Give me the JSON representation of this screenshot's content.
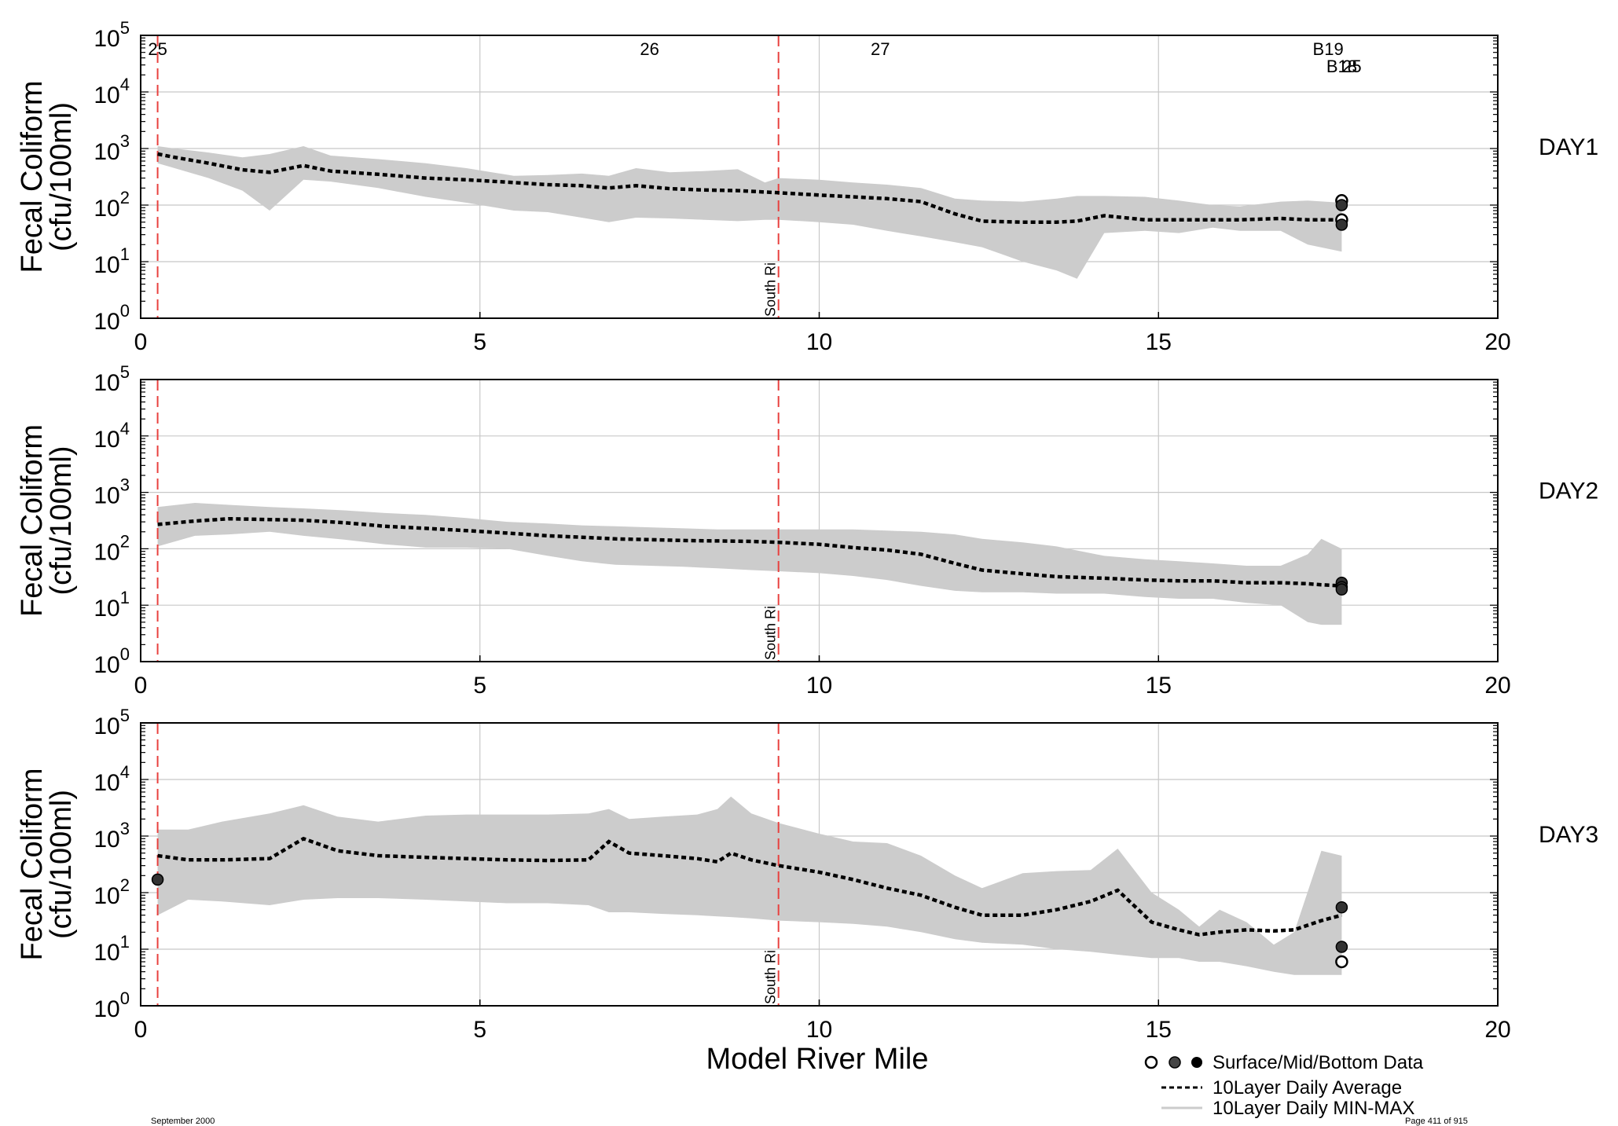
{
  "figure": {
    "xlabel": "Model River Mile",
    "xlim": [
      0,
      20
    ],
    "xticks": [
      "0",
      "5",
      "10",
      "15",
      "20"
    ],
    "yticks_base": "10",
    "yticks_exp": [
      "0",
      "1",
      "2",
      "3",
      "4",
      "5"
    ],
    "ylabel_line1": "Fecal Coliform",
    "ylabel_line2": "(cfu/100ml)",
    "south_river_label": "South Ri",
    "legend": {
      "data_label": "Surface/Mid/Bottom Data",
      "avg_label": "10Layer Daily Average",
      "minmax_label": "10Layer Daily MIN-MAX"
    },
    "footer_left": "September 2000",
    "footer_right": "Page 411 of 915",
    "colors": {
      "band": "#cccccc",
      "avg": "#000000",
      "marker_line": "#e8413f",
      "station_text": "#22b822",
      "grid": "#c8c8c8"
    }
  },
  "chart_data": [
    {
      "type": "area",
      "panel_label": "DAY1",
      "yscale": "log",
      "ylim": [
        1,
        100000
      ],
      "station_labels": [
        {
          "label": "25",
          "x": 0.25,
          "row": 0
        },
        {
          "label": "26",
          "x": 7.5,
          "row": 0
        },
        {
          "label": "27",
          "x": 10.9,
          "row": 0
        },
        {
          "label": "B19",
          "x": 17.5,
          "row": 0
        },
        {
          "label": "B18",
          "x": 17.7,
          "row": 1
        },
        {
          "label": "25",
          "x": 17.85,
          "row": 1
        }
      ],
      "vlines": [
        0.25,
        9.4
      ],
      "x": [
        0.25,
        0.5,
        1.0,
        1.5,
        1.9,
        2.4,
        2.8,
        3.5,
        4.2,
        4.8,
        5.5,
        6.0,
        6.5,
        6.9,
        7.3,
        7.8,
        8.3,
        8.8,
        9.2,
        9.4,
        10.0,
        10.5,
        11.0,
        11.5,
        12.0,
        12.4,
        13.0,
        13.5,
        13.8,
        14.2,
        14.8,
        15.3,
        15.8,
        16.2,
        16.8,
        17.2,
        17.7
      ],
      "avg": [
        800,
        700,
        550,
        420,
        380,
        500,
        400,
        350,
        300,
        280,
        250,
        230,
        220,
        200,
        220,
        195,
        185,
        180,
        170,
        165,
        150,
        140,
        130,
        115,
        70,
        52,
        50,
        50,
        52,
        65,
        55,
        55,
        55,
        55,
        58,
        55,
        55
      ],
      "max": [
        1100,
        1000,
        850,
        700,
        800,
        1100,
        750,
        650,
        550,
        450,
        330,
        340,
        360,
        330,
        450,
        380,
        400,
        430,
        250,
        300,
        280,
        250,
        230,
        200,
        130,
        120,
        115,
        130,
        145,
        145,
        140,
        120,
        100,
        95,
        115,
        120,
        110
      ],
      "min": [
        550,
        450,
        300,
        180,
        80,
        280,
        260,
        200,
        140,
        110,
        80,
        75,
        60,
        50,
        60,
        58,
        55,
        52,
        55,
        55,
        50,
        45,
        35,
        28,
        22,
        18,
        10,
        7,
        5,
        32,
        35,
        32,
        40,
        35,
        35,
        20,
        15
      ],
      "data_points": [
        {
          "x": 17.7,
          "y": 120,
          "style": "open"
        },
        {
          "x": 17.7,
          "y": 100,
          "style": "mid"
        },
        {
          "x": 17.7,
          "y": 55,
          "style": "open"
        },
        {
          "x": 17.7,
          "y": 45,
          "style": "mid"
        }
      ]
    },
    {
      "type": "area",
      "panel_label": "DAY2",
      "yscale": "log",
      "ylim": [
        1,
        100000
      ],
      "station_labels": [],
      "vlines": [
        0.25,
        9.4
      ],
      "x": [
        0.25,
        0.8,
        1.3,
        1.9,
        2.4,
        3.0,
        3.6,
        4.2,
        4.8,
        5.4,
        6.0,
        6.5,
        7.0,
        7.5,
        8.0,
        8.5,
        9.0,
        9.4,
        10.0,
        10.5,
        11.0,
        11.5,
        12.0,
        12.4,
        13.0,
        13.5,
        14.2,
        14.8,
        15.3,
        15.8,
        16.3,
        16.8,
        17.2,
        17.4,
        17.7
      ],
      "avg": [
        270,
        310,
        340,
        330,
        320,
        290,
        250,
        230,
        210,
        190,
        170,
        160,
        150,
        145,
        140,
        138,
        135,
        130,
        120,
        105,
        95,
        80,
        55,
        42,
        36,
        32,
        30,
        28,
        27,
        27,
        25,
        25,
        24,
        23,
        22
      ],
      "max": [
        550,
        650,
        600,
        550,
        520,
        480,
        430,
        400,
        350,
        300,
        280,
        260,
        250,
        240,
        230,
        220,
        220,
        220,
        220,
        220,
        210,
        200,
        180,
        150,
        130,
        110,
        75,
        65,
        60,
        55,
        50,
        50,
        80,
        150,
        100
      ],
      "min": [
        110,
        170,
        180,
        200,
        170,
        145,
        120,
        105,
        105,
        100,
        75,
        60,
        52,
        50,
        48,
        45,
        42,
        40,
        37,
        33,
        28,
        22,
        18,
        17,
        17,
        16,
        16,
        14,
        13,
        13,
        11,
        10,
        5,
        4.5,
        4.5
      ],
      "data_points": [
        {
          "x": 17.7,
          "y": 25,
          "style": "mid"
        },
        {
          "x": 17.7,
          "y": 21,
          "style": "mid"
        },
        {
          "x": 17.7,
          "y": 19,
          "style": "mid"
        }
      ]
    },
    {
      "type": "area",
      "panel_label": "DAY3",
      "yscale": "log",
      "ylim": [
        1,
        100000
      ],
      "station_labels": [],
      "vlines": [
        0.25,
        9.4
      ],
      "x": [
        0.25,
        0.7,
        1.2,
        1.9,
        2.4,
        2.9,
        3.5,
        4.2,
        4.8,
        5.4,
        6.0,
        6.6,
        6.9,
        7.2,
        7.7,
        8.2,
        8.5,
        8.7,
        9.0,
        9.4,
        10.0,
        10.5,
        11.0,
        11.5,
        12.0,
        12.4,
        13.0,
        13.5,
        14.0,
        14.4,
        14.9,
        15.3,
        15.6,
        15.9,
        16.3,
        16.7,
        17.0,
        17.4,
        17.7
      ],
      "avg": [
        450,
        380,
        380,
        400,
        900,
        550,
        450,
        420,
        400,
        380,
        370,
        380,
        800,
        500,
        450,
        400,
        350,
        500,
        380,
        300,
        230,
        170,
        120,
        90,
        55,
        40,
        40,
        50,
        70,
        110,
        30,
        22,
        18,
        20,
        22,
        21,
        22,
        32,
        40
      ],
      "max": [
        1300,
        1300,
        1800,
        2500,
        3500,
        2200,
        1800,
        2300,
        2400,
        2400,
        2400,
        2500,
        3000,
        2000,
        2200,
        2400,
        3000,
        5000,
        2500,
        1700,
        1100,
        800,
        750,
        450,
        200,
        120,
        220,
        240,
        250,
        600,
        100,
        50,
        25,
        50,
        30,
        12,
        20,
        550,
        450
      ],
      "min": [
        40,
        75,
        70,
        60,
        75,
        80,
        80,
        75,
        70,
        65,
        65,
        60,
        45,
        45,
        42,
        40,
        38,
        37,
        35,
        32,
        30,
        28,
        25,
        20,
        15,
        13,
        12,
        10,
        9,
        8,
        7,
        7,
        6,
        6,
        5,
        4,
        3.5,
        3.5,
        3.5
      ],
      "data_points": [
        {
          "x": 0.25,
          "y": 170,
          "style": "mid"
        },
        {
          "x": 17.7,
          "y": 55,
          "style": "mid"
        },
        {
          "x": 17.7,
          "y": 11,
          "style": "mid"
        },
        {
          "x": 17.7,
          "y": 6,
          "style": "open"
        }
      ]
    }
  ]
}
